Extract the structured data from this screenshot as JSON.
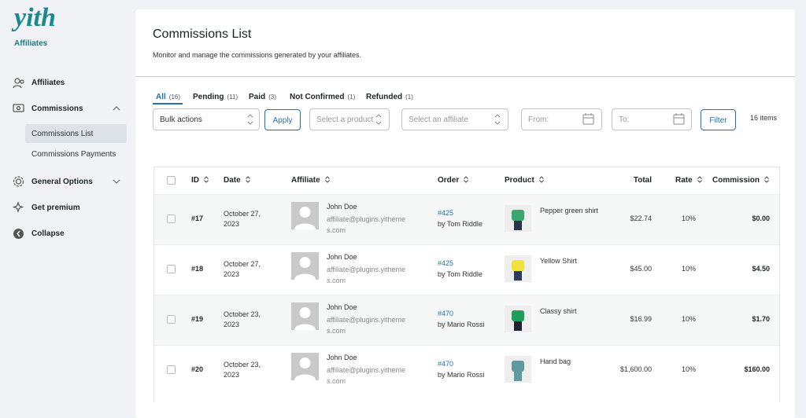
{
  "sidebar": {
    "logo": "yith",
    "brand": "Affiliates",
    "menu": [
      {
        "label": "Affiliates"
      },
      {
        "label": "Commissions",
        "submenu": [
          "Commissions List",
          "Commissions Payments"
        ]
      },
      {
        "label": "General Options"
      },
      {
        "label": "Get premium"
      },
      {
        "label": "Collapse"
      }
    ]
  },
  "header": {
    "title": "Commissions List",
    "subtitle": "Monitor and manage the commissions generated by your affiliates."
  },
  "tabs": [
    {
      "label": "All",
      "count": "(16)"
    },
    {
      "label": "Pending",
      "count": "(11)"
    },
    {
      "label": "Paid",
      "count": "(3)"
    },
    {
      "label": "Not Confirmed",
      "count": "(1)"
    },
    {
      "label": "Refunded",
      "count": "(1)"
    }
  ],
  "filters": {
    "bulk": "Bulk actions",
    "apply": "Apply",
    "product": "Select a product",
    "affiliate": "Select an affiliate",
    "from": "From:",
    "to": "To:",
    "filter": "Filter",
    "items": "16 items"
  },
  "table": {
    "columns": [
      "ID",
      "Date",
      "Affiliate",
      "Order",
      "Product",
      "Total",
      "Rate",
      "Commission"
    ],
    "rows": [
      {
        "id": "#17",
        "date": "October 27, 2023",
        "affiliate_name": "John Doe",
        "affiliate_email": "affiliate@plugins.yithemes.com",
        "order": "#425",
        "order_by": "by Tom Riddle",
        "product": "Pepper green shirt",
        "total": "$22.74",
        "rate": "10%",
        "commission": "$0.00"
      },
      {
        "id": "#18",
        "date": "October 27, 2023",
        "affiliate_name": "John Doe",
        "affiliate_email": "affiliate@plugins.yithemes.com",
        "order": "#425",
        "order_by": "by Tom Riddle",
        "product": "Yellow Shirt",
        "total": "$45.00",
        "rate": "10%",
        "commission": "$4.50"
      },
      {
        "id": "#19",
        "date": "October 23, 2023",
        "affiliate_name": "John Doe",
        "affiliate_email": "affiliate@plugins.yithemes.com",
        "order": "#470",
        "order_by": "by Mario Rossi",
        "product": "Classy shirt",
        "total": "$16.99",
        "rate": "10%",
        "commission": "$1.70"
      },
      {
        "id": "#20",
        "date": "October 23, 2023",
        "affiliate_name": "John Doe",
        "affiliate_email": "affiliate@plugins.yithemes.com",
        "order": "#470",
        "order_by": "by Mario Rossi",
        "product": "Hand bag",
        "total": "$1,600.00",
        "rate": "10%",
        "commission": "$160.00"
      }
    ]
  }
}
